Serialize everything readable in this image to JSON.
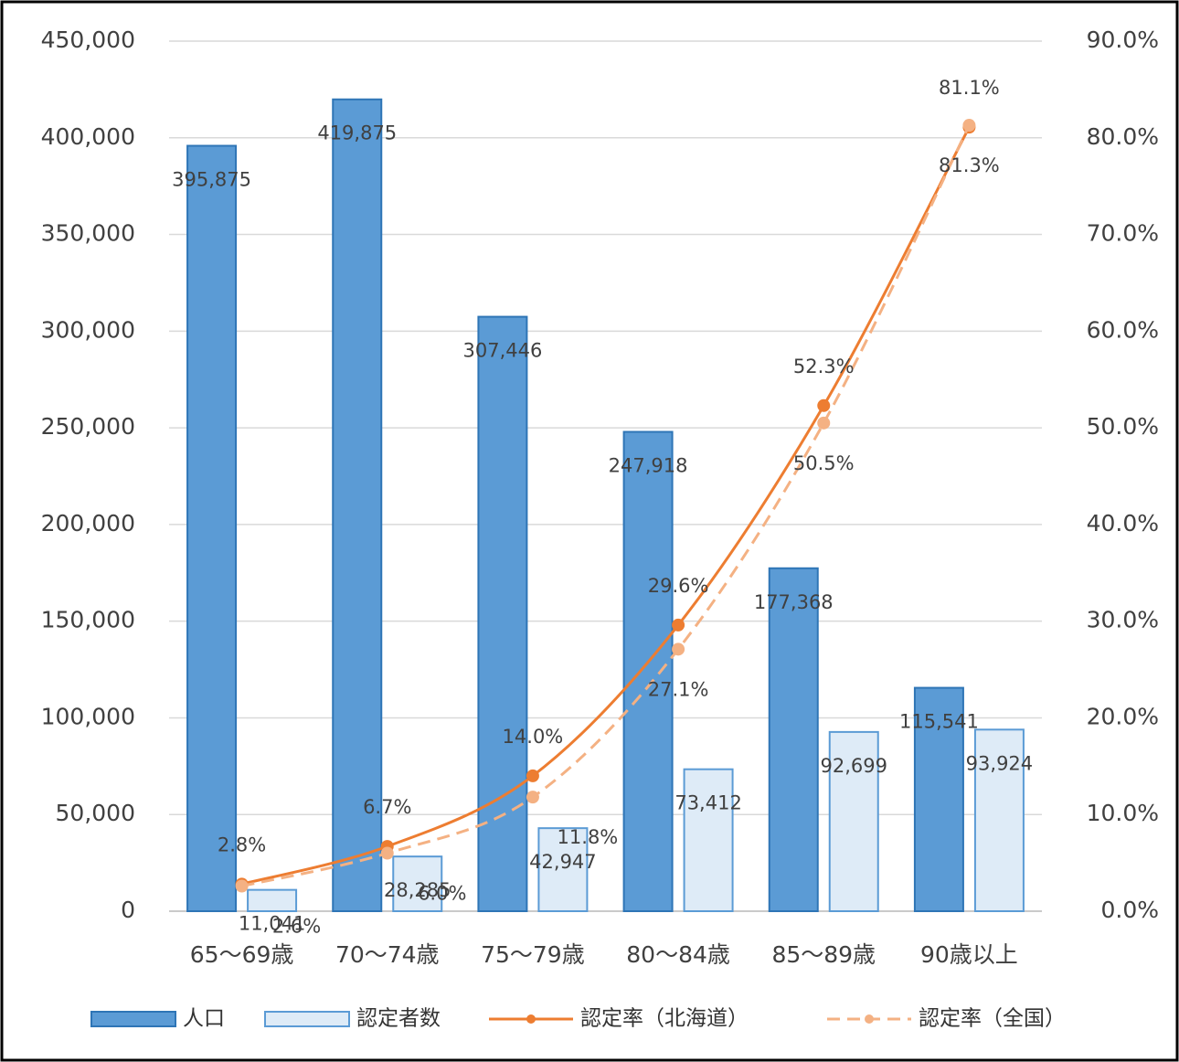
{
  "chart_data": {
    "type": "combo",
    "categories": [
      "65～69歳",
      "70～74歳",
      "75～79歳",
      "80～84歳",
      "85～89歳",
      "90歳以上"
    ],
    "series": [
      {
        "name": "人口",
        "type": "bar",
        "color": "#5b9bd5",
        "border": "#2e75b6",
        "values": [
          395875,
          419875,
          307446,
          247918,
          177368,
          115541
        ],
        "value_labels": [
          "395,875",
          "419,875",
          "307,446",
          "247,918",
          "177,368",
          "115,541"
        ]
      },
      {
        "name": "認定者数",
        "type": "bar",
        "color": "#deebf7",
        "border": "#5b9bd5",
        "values": [
          11041,
          28285,
          42947,
          73412,
          92699,
          93924
        ],
        "value_labels": [
          "11,041",
          "28,285",
          "42,947",
          "73,412",
          "92,699",
          "93,924"
        ]
      },
      {
        "name": "認定率（北海道）",
        "type": "line",
        "axis": "y2",
        "color": "#ed7d31",
        "dashed": false,
        "values": [
          2.8,
          6.7,
          14.0,
          29.6,
          52.3,
          81.1
        ],
        "value_labels": [
          "2.8%",
          "6.7%",
          "14.0%",
          "29.6%",
          "52.3%",
          "81.1%"
        ]
      },
      {
        "name": "認定率（全国）",
        "type": "line",
        "axis": "y2",
        "color": "#f4b183",
        "dashed": true,
        "values": [
          2.6,
          6.0,
          11.8,
          27.1,
          50.5,
          81.3
        ],
        "value_labels": [
          "2.6%",
          "6.0%",
          "11.8%",
          "27.1%",
          "50.5%",
          "81.3%"
        ]
      }
    ],
    "ylim": [
      0,
      450000
    ],
    "yticks": [
      0,
      {
        "value": 50000,
        "label": "50,000"
      },
      {
        "value": 100000,
        "label": "100,000"
      },
      {
        "value": 150000,
        "label": "150,000"
      },
      {
        "value": 200000,
        "label": "200,000"
      },
      {
        "value": 250000,
        "label": "250,000"
      },
      {
        "value": 300000,
        "label": "300,000"
      },
      {
        "value": 350000,
        "label": "350,000"
      },
      {
        "value": 400000,
        "label": "400,000"
      },
      {
        "value": 450000,
        "label": "450,000"
      }
    ],
    "y2lim": [
      0,
      90
    ],
    "y2ticks": [
      {
        "value": 0,
        "label": "0.0%"
      },
      {
        "value": 10,
        "label": "10.0%"
      },
      {
        "value": 20,
        "label": "20.0%"
      },
      {
        "value": 30,
        "label": "30.0%"
      },
      {
        "value": 40,
        "label": "40.0%"
      },
      {
        "value": 50,
        "label": "50.0%"
      },
      {
        "value": 60,
        "label": "60.0%"
      },
      {
        "value": 70,
        "label": "70.0%"
      },
      {
        "value": 80,
        "label": "80.0%"
      },
      {
        "value": 90,
        "label": "90.0%"
      }
    ],
    "grid": true,
    "legend": "bottom"
  }
}
